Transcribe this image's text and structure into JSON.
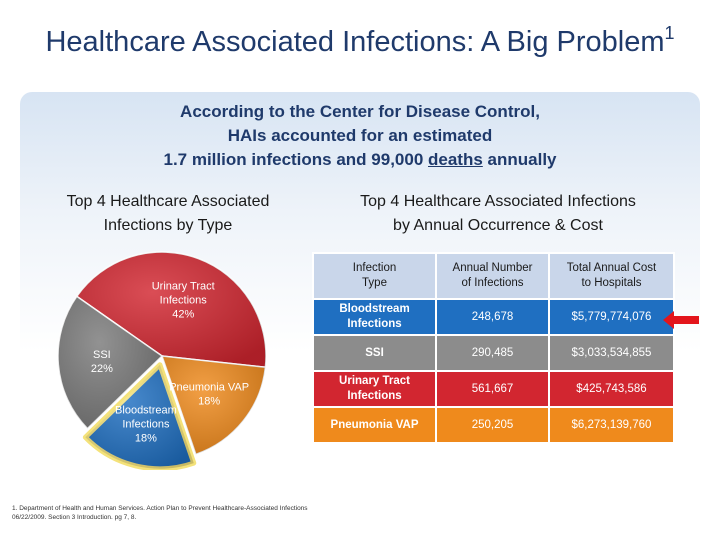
{
  "slide": {
    "title_main": "Healthcare Associated Infections: A Big Problem",
    "title_marker": "1",
    "subtitle_line1": "According to the Center for Disease Control,",
    "subtitle_line2": "HAIs accounted for an estimated",
    "subtitle_line3_pre": "1.7 million infections and 99,000 ",
    "subtitle_line3_u": "deaths",
    "subtitle_line3_post": " annually",
    "left_heading_line1": "Top 4 Healthcare Associated",
    "left_heading_line2": "Infections by Type",
    "right_heading_line1": "Top 4 Healthcare Associated Infections",
    "right_heading_line2": "by Annual Occurrence & Cost",
    "footnote_line1": "1. Department of Health and Human Services. Action Plan to Prevent Healthcare-Associated Infections",
    "footnote_line2": "06/22/2009. Section 3 Introduction. pg 7, 8."
  },
  "chart_data": [
    {
      "type": "pie",
      "title": "Top 4 Healthcare Associated Infections by Type",
      "slices": [
        {
          "label_line1": "Urinary Tract",
          "label_line2": "Infections",
          "pct_text": "42%",
          "value": 42,
          "color": "#d22630"
        },
        {
          "label_line1": "Pneumonia VAP",
          "label_line2": "",
          "pct_text": "18%",
          "value": 18,
          "color": "#ef8a1c"
        },
        {
          "label_line1": "Bloodstream",
          "label_line2": "Infections",
          "pct_text": "18%",
          "value": 18,
          "color": "#1f6fc1"
        },
        {
          "label_line1": "SSI",
          "label_line2": "",
          "pct_text": "22%",
          "value": 22,
          "color": "#7a7a7a"
        }
      ],
      "highlighted": "Bloodstream Infections"
    },
    {
      "type": "table",
      "title": "Top 4 Healthcare Associated Infections by Annual Occurrence & Cost",
      "headers": [
        {
          "line1": "Infection",
          "line2": "Type"
        },
        {
          "line1": "Annual Number",
          "line2": "of Infections"
        },
        {
          "line1": "Total Annual Cost",
          "line2": "to Hospitals"
        }
      ],
      "rows": [
        {
          "type_line1": "Bloodstream",
          "type_line2": "Infections",
          "infections": "248,678",
          "cost": "$5,779,774,076",
          "color": "#1f6fc1"
        },
        {
          "type_line1": "SSI",
          "type_line2": "",
          "infections": "290,485",
          "cost": "$3,033,534,855",
          "color": "#8c8c8c"
        },
        {
          "type_line1": "Urinary Tract",
          "type_line2": "Infections",
          "infections": "561,667",
          "cost": "$425,743,586",
          "color": "#d22630"
        },
        {
          "type_line1": "Pneumonia VAP",
          "type_line2": "",
          "infections": "250,205",
          "cost": "$6,273,139,760",
          "color": "#ef8a1c"
        }
      ]
    }
  ]
}
